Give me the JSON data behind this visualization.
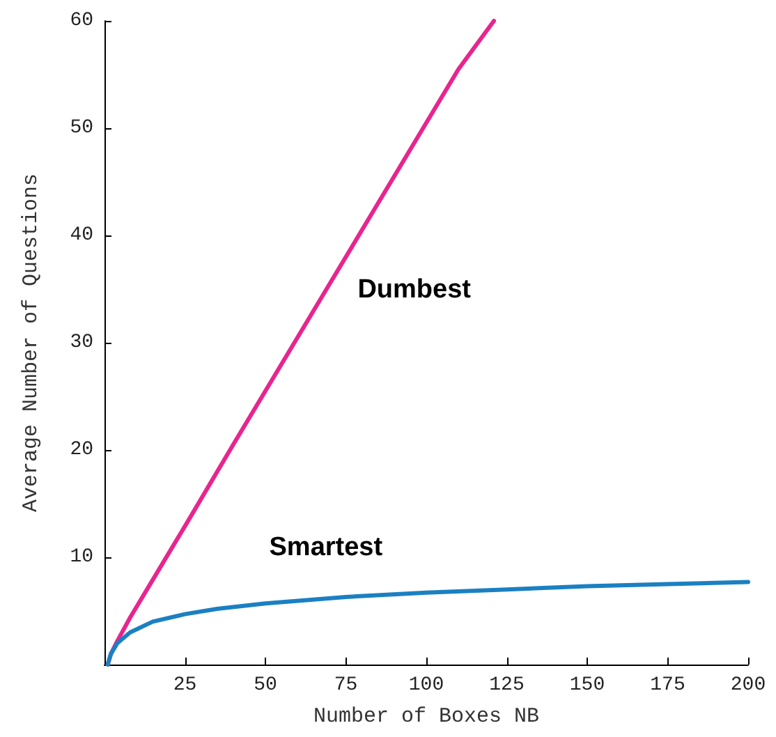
{
  "chart_data": {
    "type": "line",
    "xlabel": "Number of Boxes NB",
    "ylabel": "Average Number of Questions",
    "xlim": [
      0,
      200
    ],
    "xticks": [
      {
        "value": 0,
        "label": null
      },
      25,
      50,
      75,
      100,
      125,
      150,
      175,
      200
    ],
    "ylim": [
      0,
      60
    ],
    "yticks": [
      {
        "value": 0,
        "label": null
      },
      10,
      20,
      30,
      40,
      50,
      60
    ],
    "grid": false,
    "legend": false,
    "marker": "none",
    "line_style": "solid",
    "series": [
      {
        "name": "Dumbest",
        "color": "#e8258f",
        "x": [
          1,
          2,
          4,
          8,
          15,
          25,
          40,
          55,
          70,
          85,
          100,
          110,
          121
        ],
        "values": [
          0,
          1,
          2.2,
          4.4,
          7.9,
          12.9,
          20.5,
          28,
          35.5,
          43,
          50.5,
          55.5,
          60
        ]
      },
      {
        "name": "Smartest",
        "color": "#1b80c2",
        "x": [
          1,
          2,
          4,
          8,
          15,
          25,
          35,
          50,
          75,
          100,
          125,
          150,
          175,
          200
        ],
        "values": [
          0,
          1,
          2,
          3,
          4,
          4.7,
          5.2,
          5.7,
          6.3,
          6.7,
          7,
          7.3,
          7.5,
          7.7
        ]
      }
    ]
  }
}
